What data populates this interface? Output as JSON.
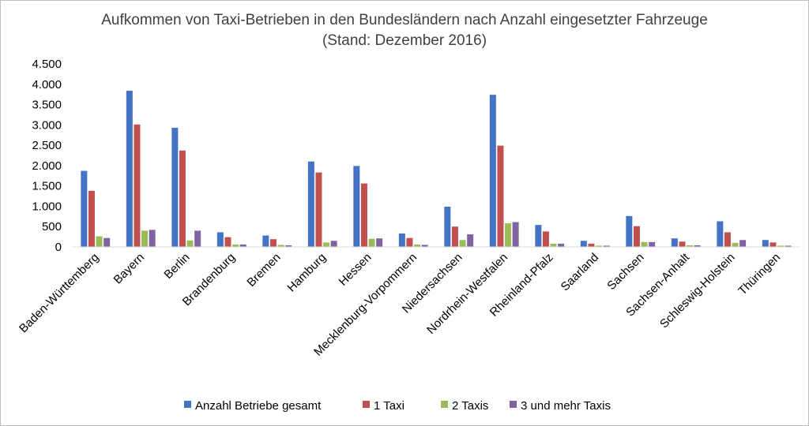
{
  "chart_data": {
    "type": "bar",
    "title": "Aufkommen von Taxi-Betrieben in den Bundesländern nach Anzahl eingesetzter Fahrzeuge",
    "subtitle": "(Stand: Dezember 2016)",
    "xlabel": "",
    "ylabel": "",
    "ylim": [
      0,
      4500
    ],
    "yticks": [
      {
        "value": 0,
        "label": "0"
      },
      {
        "value": 500,
        "label": "500"
      },
      {
        "value": 1000,
        "label": "1.000"
      },
      {
        "value": 1500,
        "label": "1.500"
      },
      {
        "value": 2000,
        "label": "2.000"
      },
      {
        "value": 2500,
        "label": "2.500"
      },
      {
        "value": 3000,
        "label": "3.000"
      },
      {
        "value": 3500,
        "label": "3.500"
      },
      {
        "value": 4000,
        "label": "4.000"
      },
      {
        "value": 4500,
        "label": "4.500"
      }
    ],
    "grid": false,
    "legend": "bottom",
    "categories": [
      "Baden-Württemberg",
      "Bayern",
      "Berlin",
      "Brandenburg",
      "Bremen",
      "Hamburg",
      "Hessen",
      "Mecklenburg-Vorpommern",
      "Niedersachsen",
      "Nordrhein-Westfalen",
      "Rheinland-Pfalz",
      "Saarland",
      "Sachsen",
      "Sachsen-Anhalt",
      "Schleswig-Holstein",
      "Thüringen"
    ],
    "series": [
      {
        "name": "Anzahl Betriebe gesamt",
        "color": "#4472c4",
        "values": [
          1870,
          3840,
          2930,
          360,
          280,
          2100,
          1990,
          330,
          990,
          3740,
          540,
          150,
          760,
          210,
          630,
          170
        ]
      },
      {
        "name": "1 Taxi",
        "color": "#c0504d",
        "values": [
          1380,
          3010,
          2370,
          240,
          190,
          1830,
          1560,
          220,
          500,
          2490,
          380,
          80,
          510,
          130,
          360,
          110
        ]
      },
      {
        "name": "2 Taxis",
        "color": "#9bbb59",
        "values": [
          260,
          400,
          160,
          60,
          50,
          110,
          200,
          60,
          170,
          580,
          80,
          30,
          120,
          40,
          100,
          30
        ]
      },
      {
        "name": "3 und mehr Taxis",
        "color": "#8064a2",
        "values": [
          220,
          420,
          400,
          60,
          40,
          150,
          210,
          50,
          310,
          610,
          80,
          30,
          120,
          40,
          170,
          30
        ]
      }
    ]
  }
}
